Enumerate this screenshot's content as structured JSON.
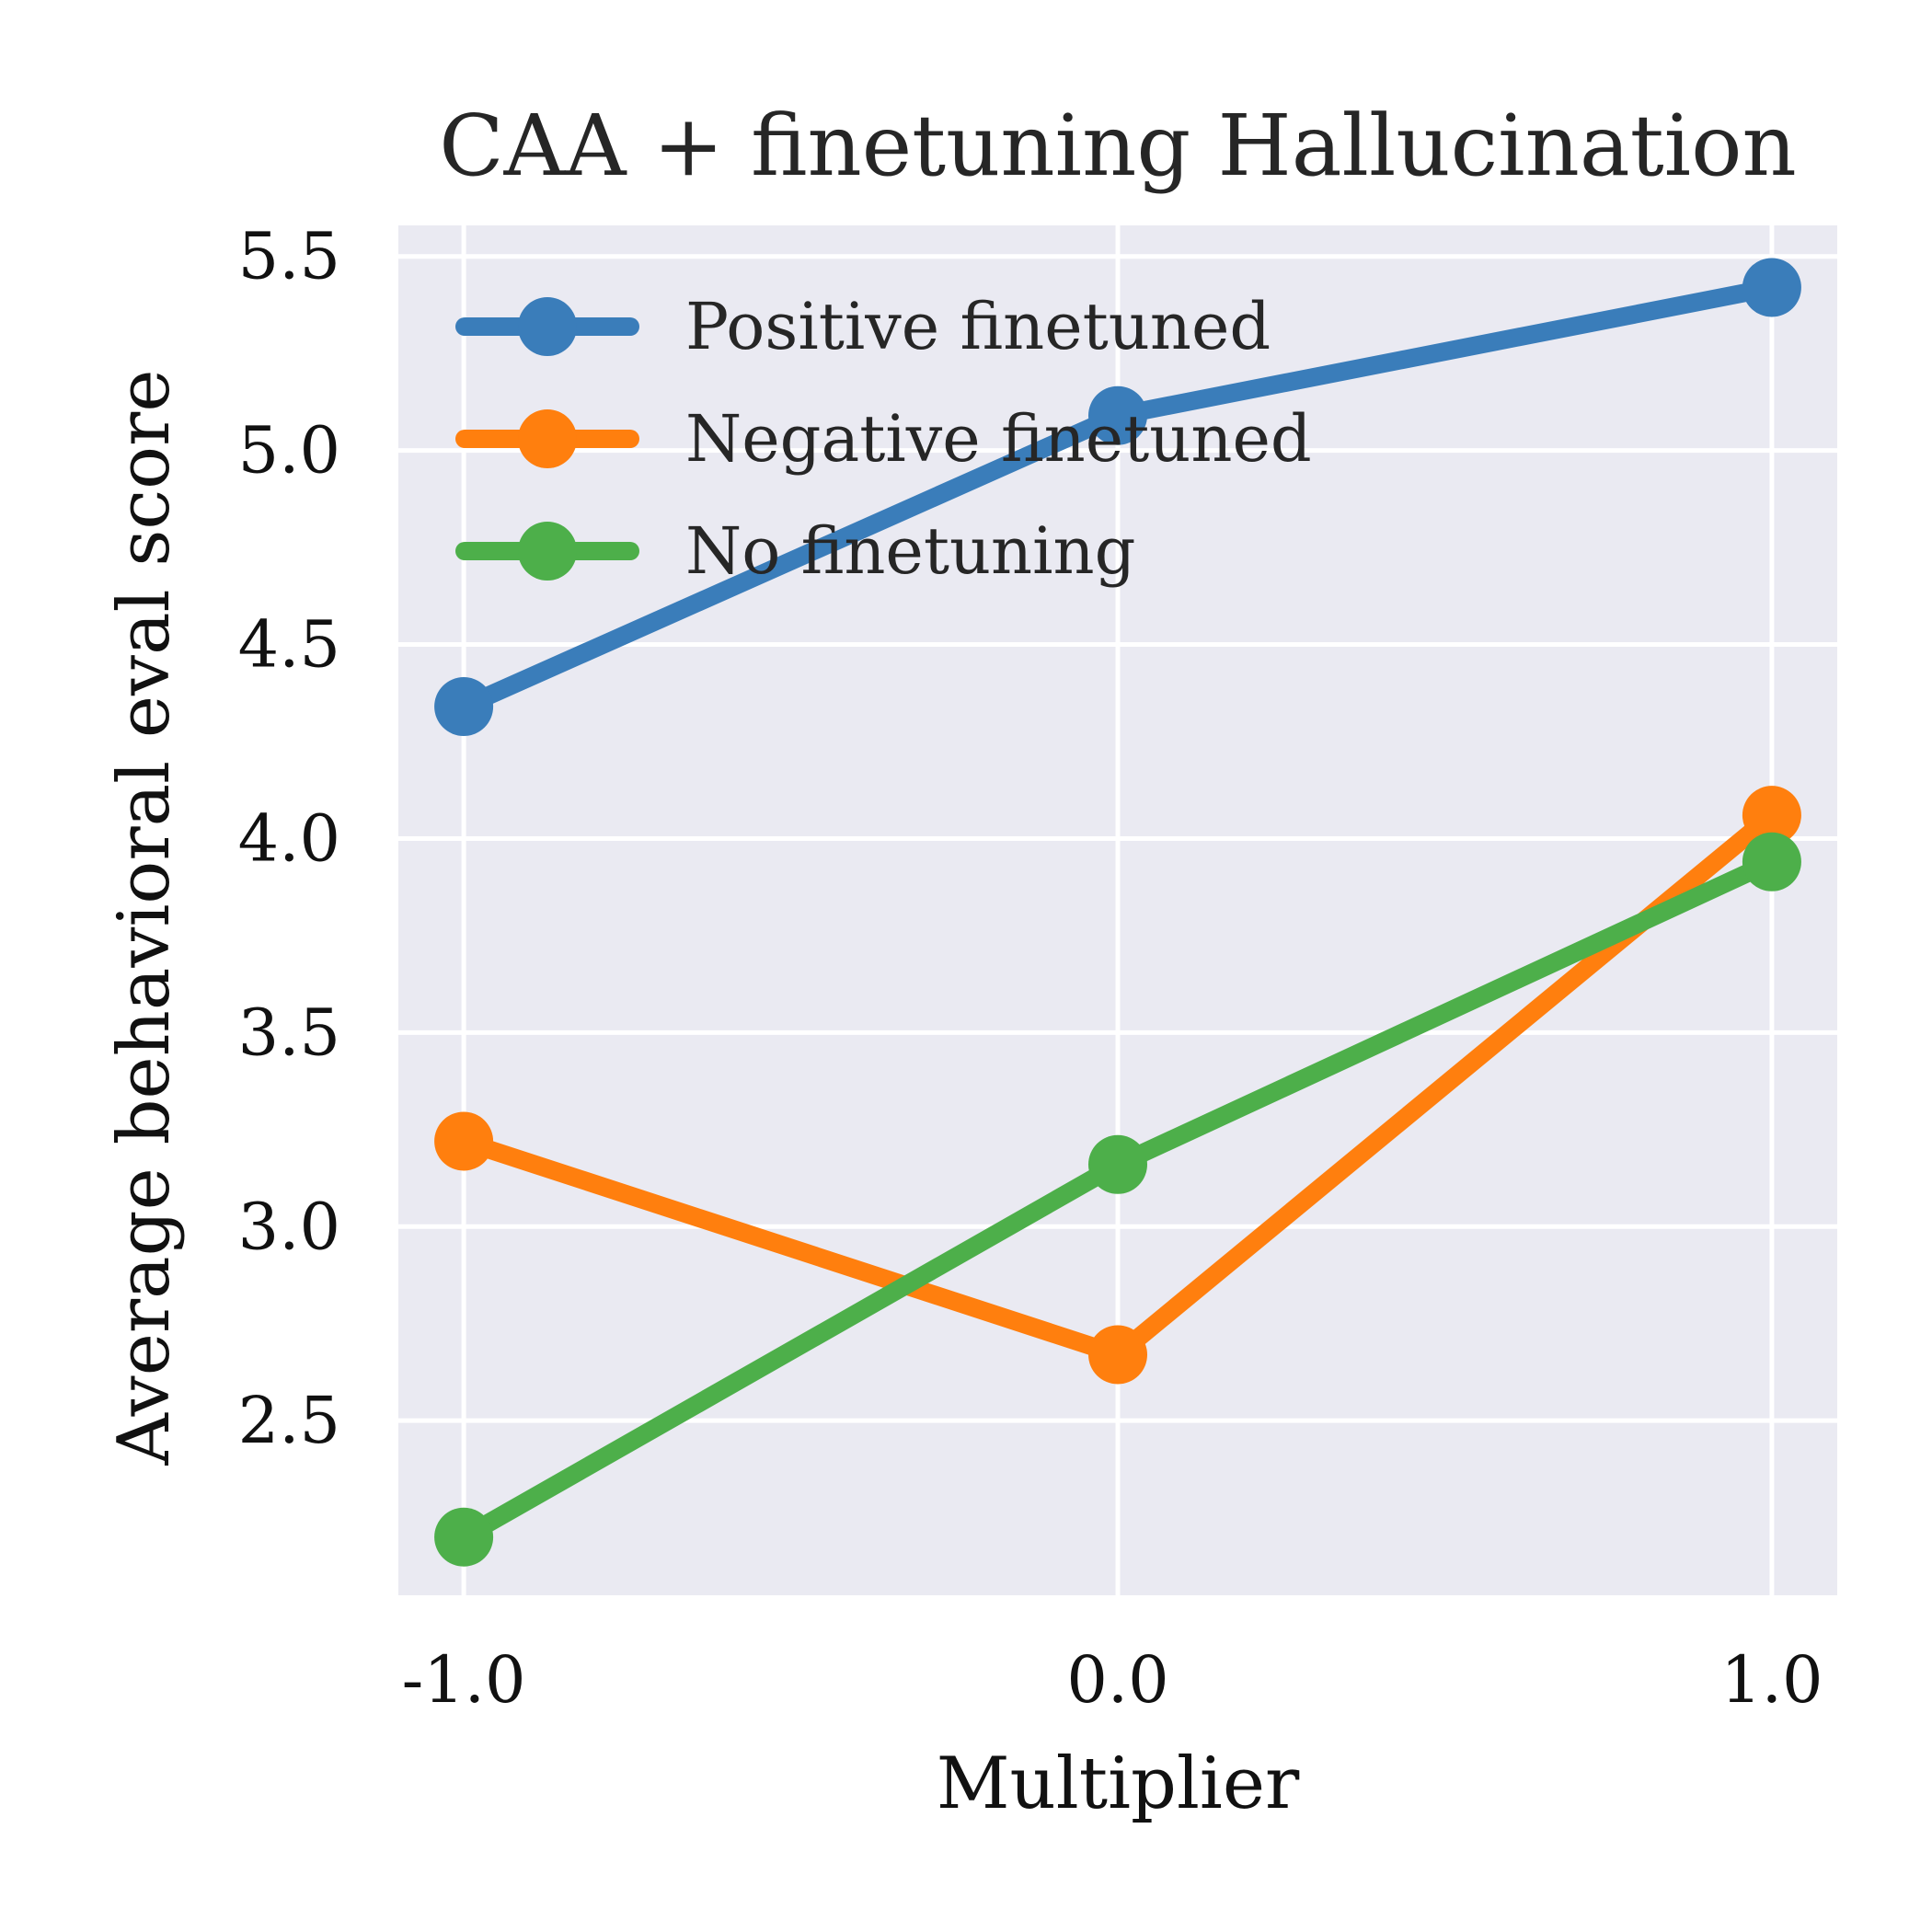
{
  "chart_data": {
    "type": "line",
    "title": "CAA + finetuning Hallucination",
    "xlabel": "Multiplier",
    "ylabel": "Average behavioral eval score",
    "x": [
      -1.0,
      0.0,
      1.0
    ],
    "x_tick_labels": [
      "-1.0",
      "0.0",
      "1.0"
    ],
    "y_ticks": [
      2.5,
      3.0,
      3.5,
      4.0,
      4.5,
      5.0,
      5.5
    ],
    "y_tick_labels": [
      "2.5",
      "3.0",
      "3.5",
      "4.0",
      "4.5",
      "5.0",
      "5.5"
    ],
    "xlim": [
      -1.1,
      1.1
    ],
    "ylim": [
      2.05,
      5.58
    ],
    "grid": true,
    "legend_position": "upper-left",
    "background_color": "#eaeaf2",
    "series": [
      {
        "name": "Positive finetuned",
        "color": "#3a7dba",
        "values": [
          4.34,
          5.09,
          5.42
        ]
      },
      {
        "name": "Negative finetuned",
        "color": "#ff7f0e",
        "values": [
          3.22,
          2.67,
          4.06
        ]
      },
      {
        "name": "No finetuning",
        "color": "#4daf4a",
        "values": [
          2.2,
          3.16,
          3.94
        ]
      }
    ]
  }
}
